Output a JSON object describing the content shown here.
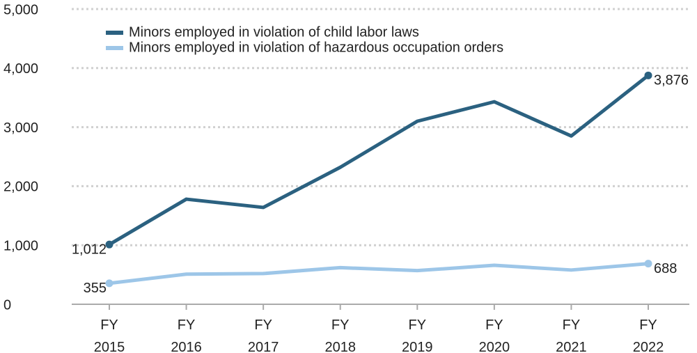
{
  "chart_data": {
    "type": "line",
    "categories": [
      "FY 2015",
      "FY 2016",
      "FY 2017",
      "FY 2018",
      "FY 2019",
      "FY 2020",
      "FY 2021",
      "FY 2022"
    ],
    "series": [
      {
        "name": "Minors employed in violation of child labor laws",
        "color": "#2b6180",
        "values": [
          1012,
          1780,
          1640,
          2320,
          3100,
          3430,
          2850,
          3876
        ],
        "value_labels": [
          "1,012",
          null,
          null,
          null,
          null,
          null,
          null,
          "3,876"
        ]
      },
      {
        "name": "Minors employed in violation of hazardous occupation orders",
        "color": "#9dc6e8",
        "values": [
          355,
          510,
          520,
          620,
          570,
          660,
          580,
          688
        ],
        "value_labels": [
          "355",
          null,
          null,
          null,
          null,
          null,
          null,
          "688"
        ]
      }
    ],
    "ylim": [
      0,
      5000
    ],
    "yticks": [
      0,
      {
        "value": 1000,
        "label": "1,000"
      },
      {
        "value": 2000,
        "label": "2,000"
      },
      {
        "value": 3000,
        "label": "3,000"
      },
      {
        "value": 4000,
        "label": "4,000"
      },
      {
        "value": 5000,
        "label": "5,000"
      }
    ],
    "grid": true
  }
}
